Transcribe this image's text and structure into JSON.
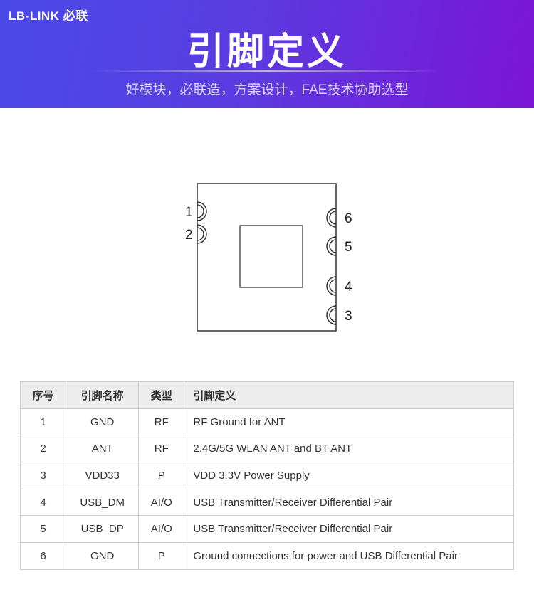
{
  "header": {
    "logo": "LB-LINK 必联",
    "title": "引脚定义",
    "subtitle": "好模块，必联造，方案设计，FAE技术协助选型"
  },
  "diagram": {
    "left_pins": [
      "1",
      "2"
    ],
    "right_pins": [
      "6",
      "5",
      "4",
      "3"
    ]
  },
  "table": {
    "headers": [
      "序号",
      "引脚名称",
      "类型",
      "引脚定义"
    ],
    "rows": [
      [
        "1",
        "GND",
        "RF",
        "RF Ground for ANT"
      ],
      [
        "2",
        "ANT",
        "RF",
        "2.4G/5G WLAN ANT and BT ANT"
      ],
      [
        "3",
        "VDD33",
        "P",
        "VDD 3.3V Power Supply"
      ],
      [
        "4",
        "USB_DM",
        "AI/O",
        "USB Transmitter/Receiver Differential Pair"
      ],
      [
        "5",
        "USB_DP",
        "AI/O",
        "USB Transmitter/Receiver Differential Pair"
      ],
      [
        "6",
        "GND",
        "P",
        "Ground connections for power and USB Differential Pair"
      ]
    ]
  }
}
